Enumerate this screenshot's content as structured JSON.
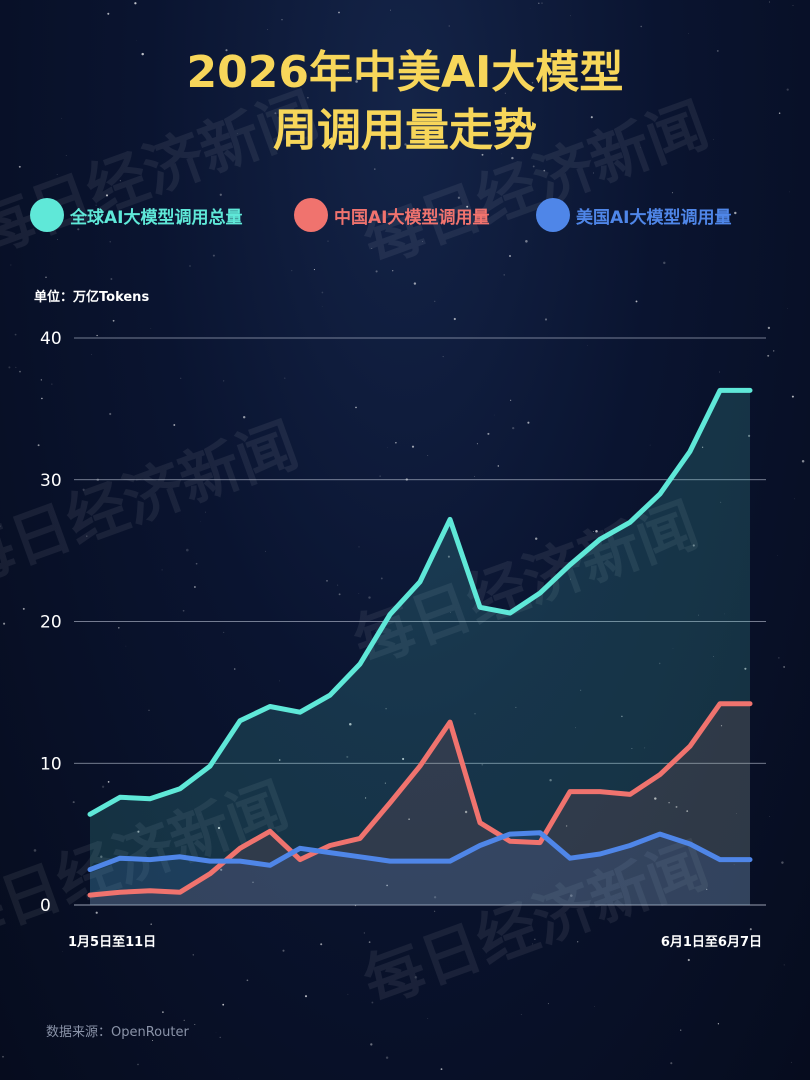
{
  "title": {
    "line1": "2026年中美AI大模型",
    "line2": "周调用量走势"
  },
  "watermark": "每日经济新闻",
  "unit_label": "单位：万亿Tokens",
  "source": "数据来源：OpenRouter",
  "colors": {
    "global": "#5fe8d8",
    "china": "#f0736e",
    "usa": "#4f86e8",
    "title": "#f7d65a",
    "grid": "#c8cfe0"
  },
  "chart_data": {
    "type": "area",
    "title": "2026年中美AI大模型周调用量走势",
    "ylabel": "单位：万亿Tokens",
    "ylim": [
      0,
      40
    ],
    "yticks": [
      0,
      10,
      20,
      30,
      40
    ],
    "grid": true,
    "legend_position": "top",
    "x_tick_labels": [
      {
        "index": 0,
        "label": "1月5日至11日"
      },
      {
        "index": 22,
        "label": "6月1日至6月7日"
      }
    ],
    "x_count": 23,
    "series": [
      {
        "name": "全球AI大模型调用总量",
        "color": "#5fe8d8",
        "values": [
          6.4,
          7.6,
          7.5,
          8.2,
          9.8,
          13.0,
          14.0,
          13.6,
          14.8,
          17.0,
          20.5,
          22.8,
          27.2,
          21.0,
          20.6,
          22.0,
          24.0,
          25.8,
          27.0,
          29.0,
          32.0,
          36.3,
          36.3
        ]
      },
      {
        "name": "中国AI大模型调用量",
        "color": "#f0736e",
        "values": [
          0.7,
          0.9,
          1.0,
          0.9,
          2.2,
          4.0,
          5.2,
          3.2,
          4.2,
          4.7,
          7.2,
          9.8,
          12.9,
          5.8,
          4.5,
          4.4,
          8.0,
          8.0,
          7.8,
          9.2,
          11.2,
          14.2,
          14.2
        ]
      },
      {
        "name": "美国AI大模型调用量",
        "color": "#4f86e8",
        "values": [
          2.5,
          3.3,
          3.2,
          3.4,
          3.1,
          3.1,
          2.8,
          4.0,
          3.7,
          3.4,
          3.1,
          3.1,
          3.1,
          4.2,
          5.0,
          5.1,
          3.3,
          3.6,
          4.2,
          5.0,
          4.3,
          3.2,
          3.2
        ]
      }
    ]
  }
}
